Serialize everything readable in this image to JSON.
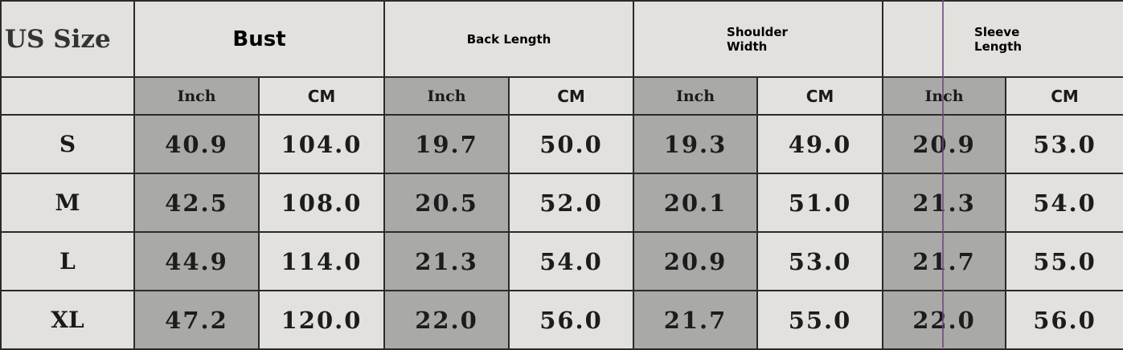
{
  "header": {
    "size_label": "US Size",
    "groups": [
      "Bust",
      "Back Length",
      "Shoulder Width",
      "Sleeve Length"
    ],
    "units": {
      "inch": "Inch",
      "cm": "CM"
    }
  },
  "rows": [
    {
      "size": "S",
      "values": [
        "40.9",
        "104.0",
        "19.7",
        "50.0",
        "19.3",
        "49.0",
        "20.9",
        "53.0"
      ]
    },
    {
      "size": "M",
      "values": [
        "42.5",
        "108.0",
        "20.5",
        "52.0",
        "20.1",
        "51.0",
        "21.3",
        "54.0"
      ]
    },
    {
      "size": "L",
      "values": [
        "44.9",
        "114.0",
        "21.3",
        "54.0",
        "20.9",
        "53.0",
        "21.7",
        "55.0"
      ]
    },
    {
      "size": "XL",
      "values": [
        "47.2",
        "120.0",
        "22.0",
        "56.0",
        "21.7",
        "55.0",
        "22.0",
        "56.0"
      ]
    }
  ]
}
